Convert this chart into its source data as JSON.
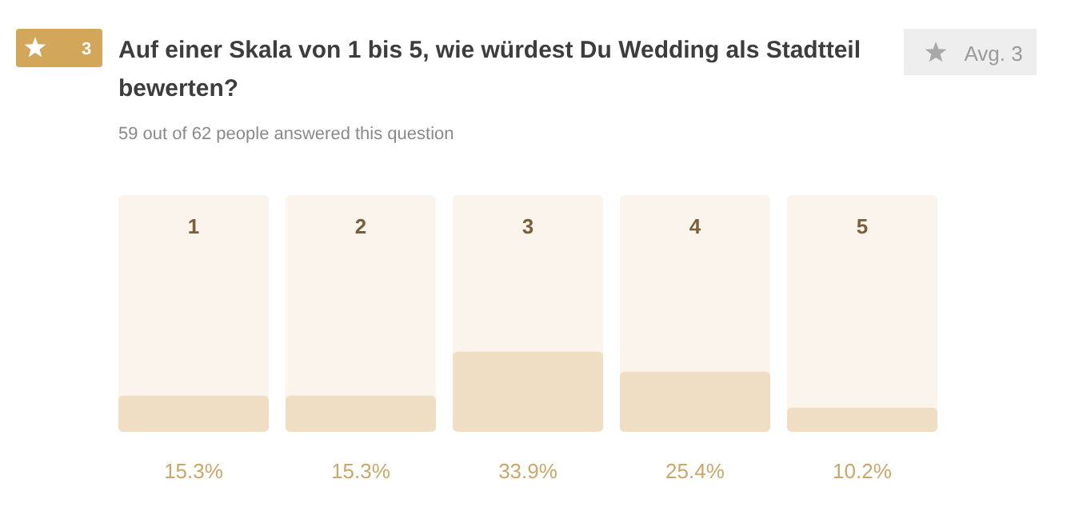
{
  "chart_data": {
    "type": "bar",
    "title": "Auf einer Skala von 1 bis 5, wie würdest Du Wedding als Stadtteil bewerten?",
    "subtitle": "59 out of 62 people answered this question",
    "categories": [
      "1",
      "2",
      "3",
      "4",
      "5"
    ],
    "values": [
      15.3,
      15.3,
      33.9,
      25.4,
      10.2
    ],
    "value_labels": [
      "15.3%",
      "15.3%",
      "33.9%",
      "25.4%",
      "10.2%"
    ],
    "color": "#efdec3",
    "ylim": [
      0,
      100
    ],
    "tick_labels": "x",
    "annotations": [
      "3",
      "Avg. 3"
    ]
  }
}
